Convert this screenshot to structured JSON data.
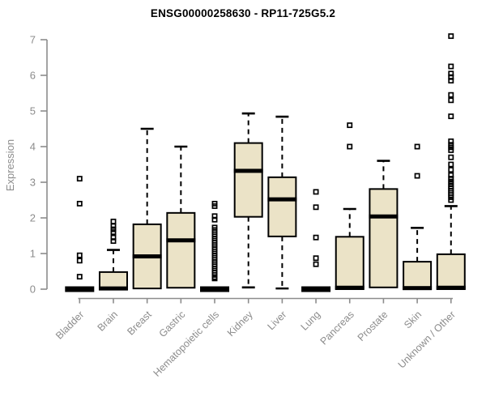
{
  "title": "ENSG00000258630 - RP11-725G5.2",
  "colors": {
    "box_fill": "#EBE3C7",
    "box_stroke": "#000000",
    "median": "#000000",
    "outlier": "#000000",
    "axis": "#8C8C8C",
    "label_text": "#8C8C8C",
    "title_text": "#000000",
    "background": "#FFFFFF"
  },
  "chart_data": {
    "type": "boxplot",
    "title": "ENSG00000258630 - RP11-725G5.2",
    "xlabel": "",
    "ylabel": "Expression",
    "ylim": [
      0,
      7.1
    ],
    "yticks": [
      0,
      1,
      2,
      3,
      4,
      5,
      6,
      7
    ],
    "grid": false,
    "legend": "none",
    "categories": [
      "Bladder",
      "Brain",
      "Breast",
      "Gastric",
      "Hematopoietic cells",
      "Kidney",
      "Liver",
      "Lung",
      "Pancreas",
      "Prostate",
      "Skin",
      "Unknown / Other"
    ],
    "series": [
      {
        "name": "Bladder",
        "q1": 0,
        "median": 0,
        "q3": 0.05,
        "whisker_low": 0,
        "whisker_high": 0.05,
        "outliers": [
          3.1,
          2.4,
          0.95,
          0.8,
          0.35
        ]
      },
      {
        "name": "Brain",
        "q1": 0,
        "median": 0.02,
        "q3": 0.48,
        "whisker_low": 0,
        "whisker_high": 1.1,
        "outliers": [
          1.9,
          1.77,
          1.68,
          1.6,
          1.45,
          1.35
        ]
      },
      {
        "name": "Breast",
        "q1": 0.02,
        "median": 0.92,
        "q3": 1.82,
        "whisker_low": 0.02,
        "whisker_high": 4.5,
        "outliers": []
      },
      {
        "name": "Gastric",
        "q1": 0.04,
        "median": 1.37,
        "q3": 2.14,
        "whisker_low": 0.04,
        "whisker_high": 4.0,
        "outliers": []
      },
      {
        "name": "Hematopoietic cells",
        "q1": 0,
        "median": 0,
        "q3": 0.05,
        "whisker_low": 0,
        "whisker_high": 0.05,
        "outliers": [
          2.4,
          2.33,
          2.05,
          1.95,
          1.73,
          1.66,
          1.6,
          1.54,
          1.48,
          1.42,
          1.36,
          1.3,
          1.24,
          1.18,
          1.12,
          1.06,
          1.0,
          0.94,
          0.88,
          0.82,
          0.76,
          0.7,
          0.64,
          0.58,
          0.52,
          0.46,
          0.4,
          0.34,
          0.3
        ]
      },
      {
        "name": "Kidney",
        "q1": 2.03,
        "median": 3.32,
        "q3": 4.1,
        "whisker_low": 0.05,
        "whisker_high": 4.93,
        "outliers": []
      },
      {
        "name": "Liver",
        "q1": 1.48,
        "median": 2.52,
        "q3": 3.14,
        "whisker_low": 0.02,
        "whisker_high": 4.84,
        "outliers": []
      },
      {
        "name": "Lung",
        "q1": 0,
        "median": 0,
        "q3": 0.05,
        "whisker_low": 0,
        "whisker_high": 0.05,
        "outliers": [
          2.73,
          2.3,
          1.45,
          0.87,
          0.7
        ]
      },
      {
        "name": "Pancreas",
        "q1": 0,
        "median": 0.04,
        "q3": 1.47,
        "whisker_low": 0,
        "whisker_high": 2.25,
        "outliers": [
          4.6,
          4.0
        ]
      },
      {
        "name": "Prostate",
        "q1": 0.05,
        "median": 2.04,
        "q3": 2.81,
        "whisker_low": 0.05,
        "whisker_high": 3.6,
        "outliers": []
      },
      {
        "name": "Skin",
        "q1": 0,
        "median": 0.03,
        "q3": 0.77,
        "whisker_low": 0,
        "whisker_high": 1.72,
        "outliers": [
          4.0,
          3.18
        ]
      },
      {
        "name": "Unknown / Other",
        "q1": 0,
        "median": 0.04,
        "q3": 0.98,
        "whisker_low": 0,
        "whisker_high": 2.33,
        "outliers": [
          7.1,
          6.25,
          6.05,
          5.95,
          5.85,
          5.45,
          5.3,
          4.85,
          4.15,
          4.05,
          3.98,
          3.9,
          3.7,
          3.5,
          3.35,
          3.2,
          3.1,
          3.02,
          2.95,
          2.88,
          2.82,
          2.76,
          2.7,
          2.64,
          2.58,
          2.5
        ]
      }
    ]
  }
}
